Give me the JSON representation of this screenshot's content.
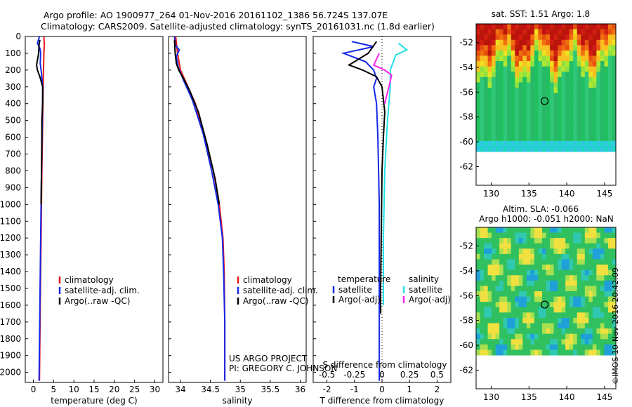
{
  "header": {
    "line1": "Argo profile: AO 1900977_264 01-Nov-2016 20161102_1386 56.724S 137.07E",
    "line2": "Climatology: CARS2009. Satellite-adjusted climatology: synTS_20161031.nc (1.8d earlier)"
  },
  "credits": {
    "project": "US ARGO PROJECT",
    "pi": "PI: GREGORY C. JOHNSON",
    "stamp": "©IMOS 10-Nov-2016 20:42:09"
  },
  "colors": {
    "climatology": "#e8141c",
    "satellite": "#1428e8",
    "argo": "#000000",
    "sat_salinity": "#22e0e8",
    "argo_salinity_adj": "#ff22ee"
  },
  "chart_data": [
    {
      "type": "line",
      "id": "temperature",
      "xlabel": "temperature (deg C)",
      "ylabel": "",
      "xlim": [
        -2,
        32
      ],
      "ylim": [
        2060,
        0
      ],
      "xticks": [
        0,
        5,
        10,
        15,
        20,
        25,
        30
      ],
      "yticks": [
        0,
        100,
        200,
        300,
        400,
        500,
        600,
        700,
        800,
        900,
        1000,
        1100,
        1200,
        1300,
        1400,
        1500,
        1600,
        1700,
        1800,
        1900,
        2000
      ],
      "legend": [
        "climatology",
        "satellite-adj. clim.",
        "Argo(..raw -QC)"
      ],
      "series": [
        {
          "name": "climatology",
          "color": "#e8141c",
          "points": [
            [
              2.6,
              0
            ],
            [
              2.7,
              50
            ],
            [
              2.6,
              100
            ],
            [
              2.5,
              200
            ],
            [
              2.4,
              300
            ],
            [
              2.3,
              500
            ],
            [
              2.1,
              800
            ],
            [
              1.9,
              1200
            ],
            [
              1.7,
              1600
            ],
            [
              1.5,
              2050
            ]
          ]
        },
        {
          "name": "satellite-adj. clim.",
          "color": "#1428e8",
          "points": [
            [
              1.5,
              0
            ],
            [
              1.0,
              40
            ],
            [
              1.6,
              70
            ],
            [
              1.8,
              100
            ],
            [
              1.7,
              160
            ],
            [
              2.0,
              220
            ],
            [
              2.3,
              300
            ],
            [
              2.2,
              500
            ],
            [
              2.0,
              800
            ],
            [
              1.8,
              1200
            ],
            [
              1.6,
              1600
            ],
            [
              1.4,
              2050
            ]
          ]
        },
        {
          "name": "Argo(..raw -QC)",
          "color": "#000000",
          "points": [
            [
              1.6,
              20
            ],
            [
              1.4,
              50
            ],
            [
              1.3,
              100
            ],
            [
              0.8,
              170
            ],
            [
              1.0,
              200
            ],
            [
              1.6,
              240
            ],
            [
              2.3,
              300
            ],
            [
              2.3,
              400
            ],
            [
              2.1,
              500
            ],
            [
              2.1,
              600
            ],
            [
              2.0,
              800
            ],
            [
              1.9,
              1000
            ]
          ]
        }
      ]
    },
    {
      "type": "line",
      "id": "salinity",
      "xlabel": "salinity",
      "ylabel": "",
      "xlim": [
        33.8,
        36.1
      ],
      "ylim": [
        2060,
        0
      ],
      "xticks": [
        34,
        34.5,
        35,
        35.5,
        36
      ],
      "legend": [
        "climatology",
        "satellite-adj. clim.",
        "Argo(..raw -QC)"
      ],
      "series": [
        {
          "name": "climatology",
          "color": "#e8141c",
          "points": [
            [
              33.92,
              0
            ],
            [
              33.95,
              100
            ],
            [
              34.0,
              200
            ],
            [
              34.1,
              280
            ],
            [
              34.25,
              400
            ],
            [
              34.4,
              600
            ],
            [
              34.55,
              800
            ],
            [
              34.65,
              1000
            ],
            [
              34.71,
              1200
            ],
            [
              34.73,
              1400
            ],
            [
              34.74,
              1700
            ],
            [
              34.74,
              2050
            ]
          ]
        },
        {
          "name": "satellite-adj. clim.",
          "color": "#1428e8",
          "points": [
            [
              33.9,
              0
            ],
            [
              33.91,
              50
            ],
            [
              33.98,
              80
            ],
            [
              33.93,
              120
            ],
            [
              33.96,
              180
            ],
            [
              34.05,
              260
            ],
            [
              34.2,
              380
            ],
            [
              34.38,
              580
            ],
            [
              34.52,
              800
            ],
            [
              34.63,
              1000
            ],
            [
              34.7,
              1200
            ],
            [
              34.72,
              1400
            ],
            [
              34.74,
              1700
            ],
            [
              34.74,
              2050
            ]
          ]
        },
        {
          "name": "Argo(..raw -QC)",
          "color": "#000000",
          "points": [
            [
              33.9,
              20
            ],
            [
              33.91,
              100
            ],
            [
              33.93,
              160
            ],
            [
              33.97,
              200
            ],
            [
              34.05,
              250
            ],
            [
              34.15,
              320
            ],
            [
              34.3,
              450
            ],
            [
              34.45,
              650
            ],
            [
              34.58,
              850
            ],
            [
              34.65,
              1000
            ]
          ]
        }
      ]
    },
    {
      "type": "line",
      "id": "differences",
      "xlabel": "T difference from climatology",
      "x2label": "S difference from climatology",
      "xlim": [
        -2.5,
        2.5
      ],
      "ylim": [
        2060,
        0
      ],
      "xticks": [
        -2,
        -1,
        0,
        1,
        2
      ],
      "x2ticks": [
        -0.5,
        -0.25,
        0,
        0.25,
        0.5
      ],
      "legend_titles": [
        "temperature",
        "salinity"
      ],
      "legend": [
        "satellite",
        "Argo(-adj)",
        "satellite",
        "Argo(-adj)"
      ],
      "series": [
        {
          "name": "satellite",
          "color": "#1428e8",
          "points": [
            [
              -1.1,
              30
            ],
            [
              -0.3,
              60
            ],
            [
              -1.4,
              100
            ],
            [
              -0.6,
              150
            ],
            [
              -0.3,
              200
            ],
            [
              -0.2,
              250
            ],
            [
              -0.3,
              300
            ],
            [
              -0.2,
              400
            ],
            [
              -0.15,
              600
            ],
            [
              -0.1,
              1000
            ],
            [
              -0.1,
              1500
            ],
            [
              -0.1,
              2050
            ]
          ]
        },
        {
          "name": "Argo(-adj)",
          "color": "#000000",
          "points": [
            [
              -0.2,
              30
            ],
            [
              -0.5,
              100
            ],
            [
              -1.2,
              170
            ],
            [
              -0.7,
              200
            ],
            [
              -0.2,
              240
            ],
            [
              0.0,
              300
            ],
            [
              0.1,
              450
            ],
            [
              0.05,
              600
            ],
            [
              0.0,
              800
            ],
            [
              -0.05,
              1500
            ],
            [
              -0.05,
              1650
            ]
          ]
        },
        {
          "name": "satellite",
          "color": "#22e0e8",
          "points": [
            [
              0.6,
              40
            ],
            [
              0.9,
              80
            ],
            [
              0.5,
              110
            ],
            [
              0.3,
              200
            ],
            [
              0.3,
              300
            ],
            [
              0.2,
              500
            ],
            [
              0.1,
              800
            ],
            [
              0.05,
              1200
            ],
            [
              0.05,
              1600
            ]
          ]
        },
        {
          "name": "Argo(-adj)",
          "color": "#ff22ee",
          "points": [
            [
              -0.1,
              100
            ],
            [
              -0.3,
              170
            ],
            [
              0.1,
              200
            ],
            [
              0.35,
              230
            ],
            [
              0.25,
              300
            ],
            [
              0.1,
              400
            ]
          ]
        }
      ]
    },
    {
      "type": "heatmap",
      "id": "sst_map",
      "title": "sat. SST: 1.51 Argo: 1.8",
      "xlim": [
        128,
        146.5
      ],
      "ylim": [
        -63.5,
        -50.5
      ],
      "xticks": [
        130,
        135,
        140,
        145
      ],
      "yticks": [
        -52,
        -54,
        -56,
        -58,
        -60,
        -62
      ],
      "marker": {
        "lon": 137.07,
        "lat": -56.72
      }
    },
    {
      "type": "heatmap",
      "id": "sla_map",
      "title": "Altim. SLA: -0.066",
      "subtitle": "Argo h1000: -0.051 h2000: NaN",
      "xlim": [
        128,
        146.5
      ],
      "ylim": [
        -63.5,
        -50.5
      ],
      "xticks": [
        130,
        135,
        140,
        145
      ],
      "yticks": [
        -52,
        -54,
        -56,
        -58,
        -60,
        -62
      ],
      "marker": {
        "lon": 137.07,
        "lat": -56.72
      }
    }
  ]
}
